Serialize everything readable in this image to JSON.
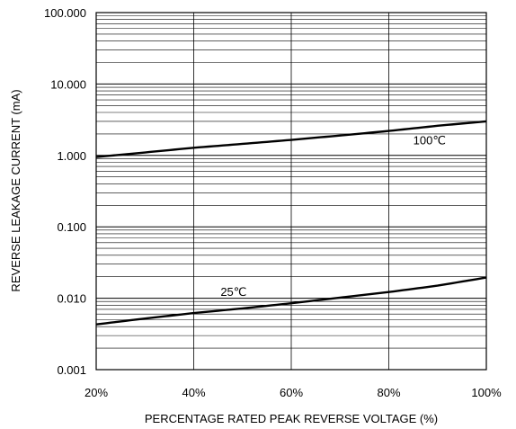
{
  "chart_data": {
    "type": "line",
    "title": "",
    "xlabel": "PERCENTAGE RATED PEAK REVERSE VOLTAGE (%)",
    "ylabel": "REVERSE LEAKAGE CURRENT (mA)",
    "xlim": [
      20,
      100
    ],
    "ylim": [
      0.001,
      100
    ],
    "yscale": "log",
    "grid": true,
    "x_ticks": [
      "20%",
      "40%",
      "60%",
      "80%",
      "100%"
    ],
    "y_ticks": [
      "0.001",
      "0.010",
      "0.100",
      "1.000",
      "10.000",
      "100.000"
    ],
    "series": [
      {
        "name": "100℃",
        "x": [
          20,
          30,
          40,
          50,
          60,
          70,
          80,
          90,
          100
        ],
        "values": [
          0.95,
          1.1,
          1.28,
          1.45,
          1.65,
          1.9,
          2.2,
          2.6,
          3.0
        ]
      },
      {
        "name": "25℃",
        "x": [
          20,
          30,
          40,
          50,
          60,
          70,
          80,
          90,
          100
        ],
        "values": [
          0.0043,
          0.0052,
          0.0062,
          0.0072,
          0.0085,
          0.0102,
          0.0122,
          0.015,
          0.0195
        ]
      }
    ],
    "colors": {
      "line": "#000000",
      "grid": "#000000",
      "background": "#ffffff"
    }
  }
}
